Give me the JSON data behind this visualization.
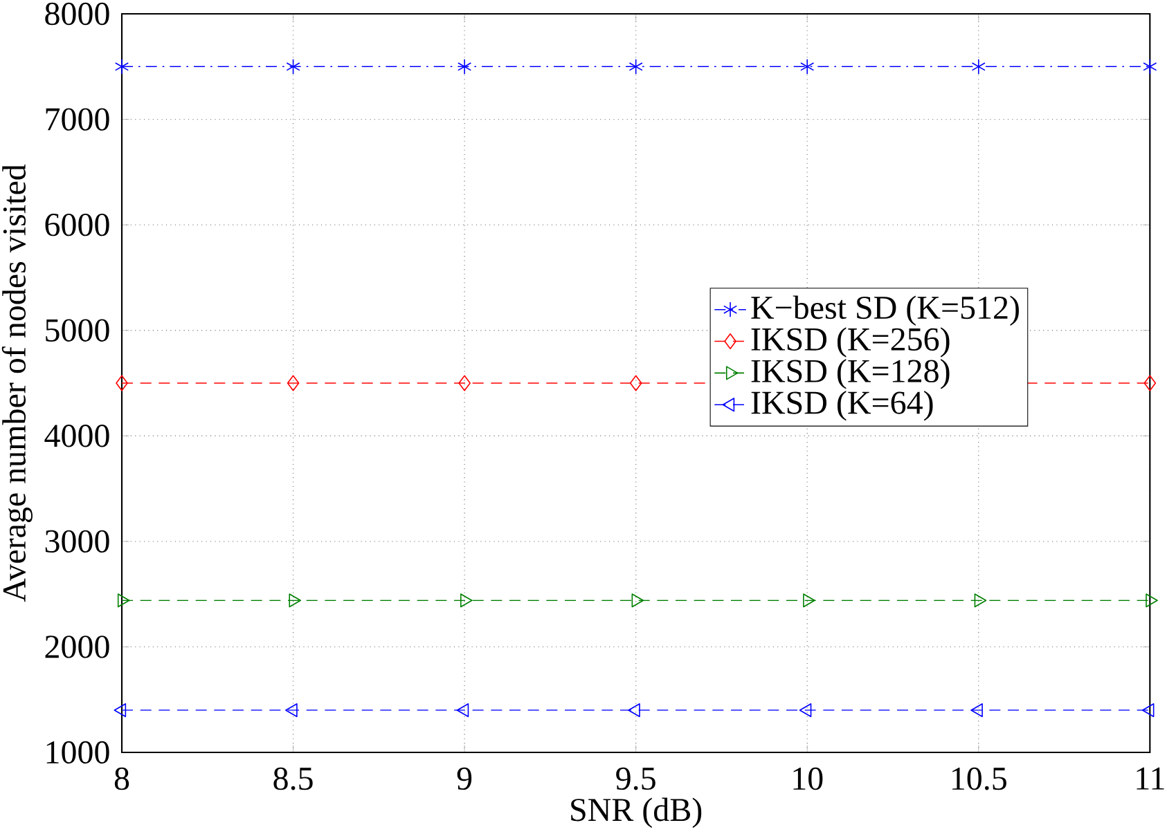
{
  "chart_data": {
    "type": "line",
    "xlabel": "SNR (dB)",
    "ylabel": "Average number of nodes visited",
    "x": [
      8,
      8.5,
      9,
      9.5,
      10,
      10.5,
      11
    ],
    "series": [
      {
        "name": "K−best SD (K=512)",
        "color": "#0000ff",
        "marker": "cross",
        "line_style": "dashdot",
        "values": [
          7500,
          7500,
          7500,
          7500,
          7500,
          7500,
          7500
        ]
      },
      {
        "name": "IKSD (K=256)",
        "color": "#ff0000",
        "marker": "diamond",
        "line_style": "dashed",
        "values": [
          4500,
          4500,
          4500,
          4500,
          null,
          null,
          4500
        ]
      },
      {
        "name": "IKSD (K=128)",
        "color": "#008000",
        "marker": "triangle-right",
        "line_style": "dashed",
        "values": [
          2440,
          2440,
          2440,
          2440,
          2440,
          2440,
          2440
        ]
      },
      {
        "name": "IKSD (K=64)",
        "color": "#0000ff",
        "marker": "triangle-left",
        "line_style": "dashed",
        "values": [
          1400,
          1400,
          1400,
          1400,
          1400,
          1400,
          1400
        ]
      }
    ],
    "xlim": [
      8,
      11
    ],
    "ylim": [
      1000,
      8000
    ],
    "xticks": [
      8,
      8.5,
      9,
      9.5,
      10,
      10.5,
      11
    ],
    "yticks": [
      1000,
      2000,
      3000,
      4000,
      5000,
      6000,
      7000,
      8000
    ],
    "grid": true,
    "legend": "right"
  }
}
